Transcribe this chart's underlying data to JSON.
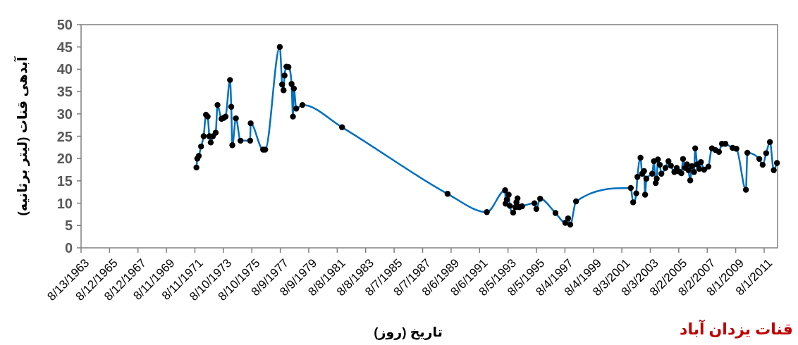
{
  "chart_data": {
    "type": "line",
    "ylabel": "آبدهی قنات (لیتر برثانیه)",
    "xlabel": "تاریخ (روز)",
    "annotations": [
      "قنات یزدان آباد"
    ],
    "xlim": [
      "1963-08-13",
      "2012-07-10"
    ],
    "ylim": [
      0,
      50
    ],
    "yticks": [
      0,
      5,
      10,
      15,
      20,
      25,
      30,
      35,
      40,
      45,
      50
    ],
    "xticks": [
      {
        "value": "1963-08-13",
        "label": "8/13/1963"
      },
      {
        "value": "1965-08-12",
        "label": "8/12/1965"
      },
      {
        "value": "1967-08-12",
        "label": "8/12/1967"
      },
      {
        "value": "1969-08-11",
        "label": "8/11/1969"
      },
      {
        "value": "1971-08-11",
        "label": "8/11/1971"
      },
      {
        "value": "1973-08-10",
        "label": "8/10/1973"
      },
      {
        "value": "1975-08-10",
        "label": "8/10/1975"
      },
      {
        "value": "1977-08-09",
        "label": "8/9/1977"
      },
      {
        "value": "1979-08-09",
        "label": "8/9/1979"
      },
      {
        "value": "1981-08-08",
        "label": "8/8/1981"
      },
      {
        "value": "1983-08-08",
        "label": "8/8/1983"
      },
      {
        "value": "1985-08-07",
        "label": "8/7/1985"
      },
      {
        "value": "1987-08-07",
        "label": "8/7/1987"
      },
      {
        "value": "1989-08-06",
        "label": "8/6/1989"
      },
      {
        "value": "1991-08-06",
        "label": "8/6/1991"
      },
      {
        "value": "1993-08-05",
        "label": "8/5/1993"
      },
      {
        "value": "1995-08-05",
        "label": "8/5/1995"
      },
      {
        "value": "1997-08-04",
        "label": "8/4/1997"
      },
      {
        "value": "1999-08-04",
        "label": "8/4/1999"
      },
      {
        "value": "2001-08-03",
        "label": "8/3/2001"
      },
      {
        "value": "2003-08-03",
        "label": "8/3/2003"
      },
      {
        "value": "2005-08-02",
        "label": "8/2/2005"
      },
      {
        "value": "2007-08-02",
        "label": "8/2/2007"
      },
      {
        "value": "2009-08-01",
        "label": "8/1/2009"
      },
      {
        "value": "2011-08-01",
        "label": "8/1/2011"
      }
    ],
    "grid": false,
    "marker": "circle",
    "line_style": "solid",
    "x": [
      "1971-09-19",
      "1971-10-12",
      "1971-11-18",
      "1972-01-16",
      "1972-03-22",
      "1972-05-21",
      "1972-07-04",
      "1972-08-15",
      "1972-09-20",
      "1972-11-14",
      "1973-01-25",
      "1973-03-13",
      "1973-06-23",
      "1973-08-17",
      "1973-10-05",
      "1974-01-27",
      "1974-02-28",
      "1974-03-28",
      "1974-06-27",
      "1974-10-24",
      "1975-06-28",
      "1975-07-11",
      "1976-05-25",
      "1976-07-18",
      "1977-07-27",
      "1977-09-25",
      "1977-11-01",
      "1977-11-26",
      "1978-01-13",
      "1978-03-06",
      "1978-05-25",
      "1978-06-30",
      "1978-07-23",
      "1978-09-22",
      "1979-02-27",
      "1981-12-10",
      "1989-05-08",
      "1992-02-10",
      "1993-05-24",
      "1993-06-05",
      "1993-07-05",
      "1993-08-23",
      "1993-09-22",
      "1993-12-16",
      "1994-02-09",
      "1994-03-09",
      "1994-04-07",
      "1994-05-20",
      "1994-08-01",
      "1995-06-15",
      "1995-08-03",
      "1995-11-08",
      "1996-12-05",
      "1997-08-14",
      "1997-10-25",
      "1997-12-19",
      "1998-05-17",
      "2002-03-21",
      "2002-05-20",
      "2002-08-08",
      "2002-09-07",
      "2002-11-25",
      "2003-01-06",
      "2003-02-24",
      "2003-03-23",
      "2003-04-24",
      "2003-09-21",
      "2003-11-04",
      "2003-12-20",
      "2004-01-15",
      "2004-02-14",
      "2004-04-02",
      "2004-05-13",
      "2004-08-25",
      "2004-11-11",
      "2005-01-12",
      "2005-04-11",
      "2005-06-10",
      "2005-08-08",
      "2005-10-09",
      "2005-11-20",
      "2006-01-08",
      "2006-03-01",
      "2006-04-07",
      "2006-05-23",
      "2006-07-06",
      "2006-08-29",
      "2006-09-28",
      "2006-11-16",
      "2007-01-09",
      "2007-02-21",
      "2007-05-14",
      "2007-09-01",
      "2007-12-01",
      "2008-02-29",
      "2008-05-29",
      "2008-08-15",
      "2008-11-09",
      "2009-05-13",
      "2009-08-19",
      "2010-04-21",
      "2010-05-27",
      "2011-03-30",
      "2011-06-24",
      "2011-09-23",
      "2011-12-27",
      "2012-04-04",
      "2012-06-25"
    ],
    "series": [
      {
        "color": "#0070c0",
        "values": [
          18.0,
          20.0,
          20.6,
          22.7,
          25.0,
          29.8,
          29.4,
          25.0,
          23.6,
          25.0,
          25.8,
          32.0,
          28.9,
          29.1,
          29.4,
          37.6,
          31.6,
          23.0,
          29.0,
          24.0,
          24.0,
          27.9,
          22.0,
          22.0,
          45.0,
          36.6,
          35.3,
          38.6,
          40.6,
          40.5,
          36.7,
          29.4,
          35.7,
          31.2,
          32.0,
          27.0,
          12.1,
          8.0,
          12.9,
          9.9,
          10.8,
          11.9,
          9.4,
          7.9,
          9.1,
          10.2,
          11.1,
          9.1,
          9.3,
          10.0,
          8.7,
          11.0,
          7.8,
          5.6,
          6.6,
          5.2,
          10.4,
          13.4,
          10.2,
          12.2,
          15.9,
          20.2,
          16.6,
          17.2,
          11.9,
          15.5,
          16.6,
          19.4,
          14.5,
          15.5,
          19.8,
          18.6,
          16.6,
          17.9,
          19.4,
          18.4,
          17.0,
          17.9,
          17.1,
          16.7,
          19.9,
          17.9,
          18.7,
          17.4,
          15.1,
          18.3,
          17.0,
          22.3,
          18.7,
          17.7,
          19.2,
          17.5,
          18.2,
          22.3,
          21.9,
          21.5,
          23.3,
          23.3,
          22.4,
          22.2,
          13.0,
          21.3,
          19.9,
          18.6,
          21.2,
          23.7,
          17.4,
          19.0
        ]
      }
    ]
  }
}
